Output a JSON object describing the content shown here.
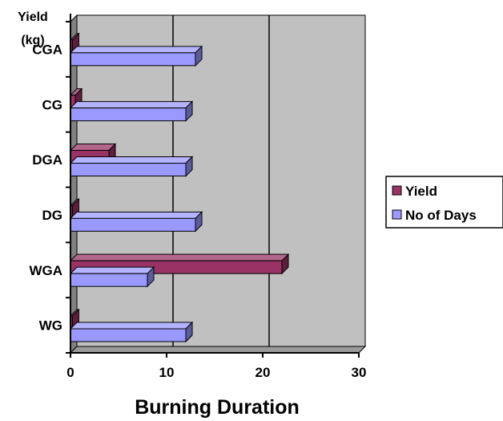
{
  "chart_data": {
    "type": "bar",
    "orientation": "horizontal",
    "style": "3d-clustered",
    "categories": [
      "WG",
      "WGA",
      "DG",
      "DGA",
      "CG",
      "CGA"
    ],
    "series": [
      {
        "name": "Yield",
        "values": [
          0.2,
          22,
          0.2,
          4,
          0.5,
          0.2
        ],
        "color": "#993366"
      },
      {
        "name": "No of Days",
        "values": [
          12,
          8,
          13,
          12,
          12,
          13
        ],
        "color": "#9999ff"
      }
    ],
    "xlabel": "Burning Duration",
    "ylabel": [
      "Yield",
      "(kg)"
    ],
    "xlim": [
      0,
      30
    ],
    "xticks": [
      "0",
      "10",
      "20",
      "30"
    ],
    "grid": true,
    "plot_background": "#c0c0c0",
    "legend_position": "right"
  }
}
